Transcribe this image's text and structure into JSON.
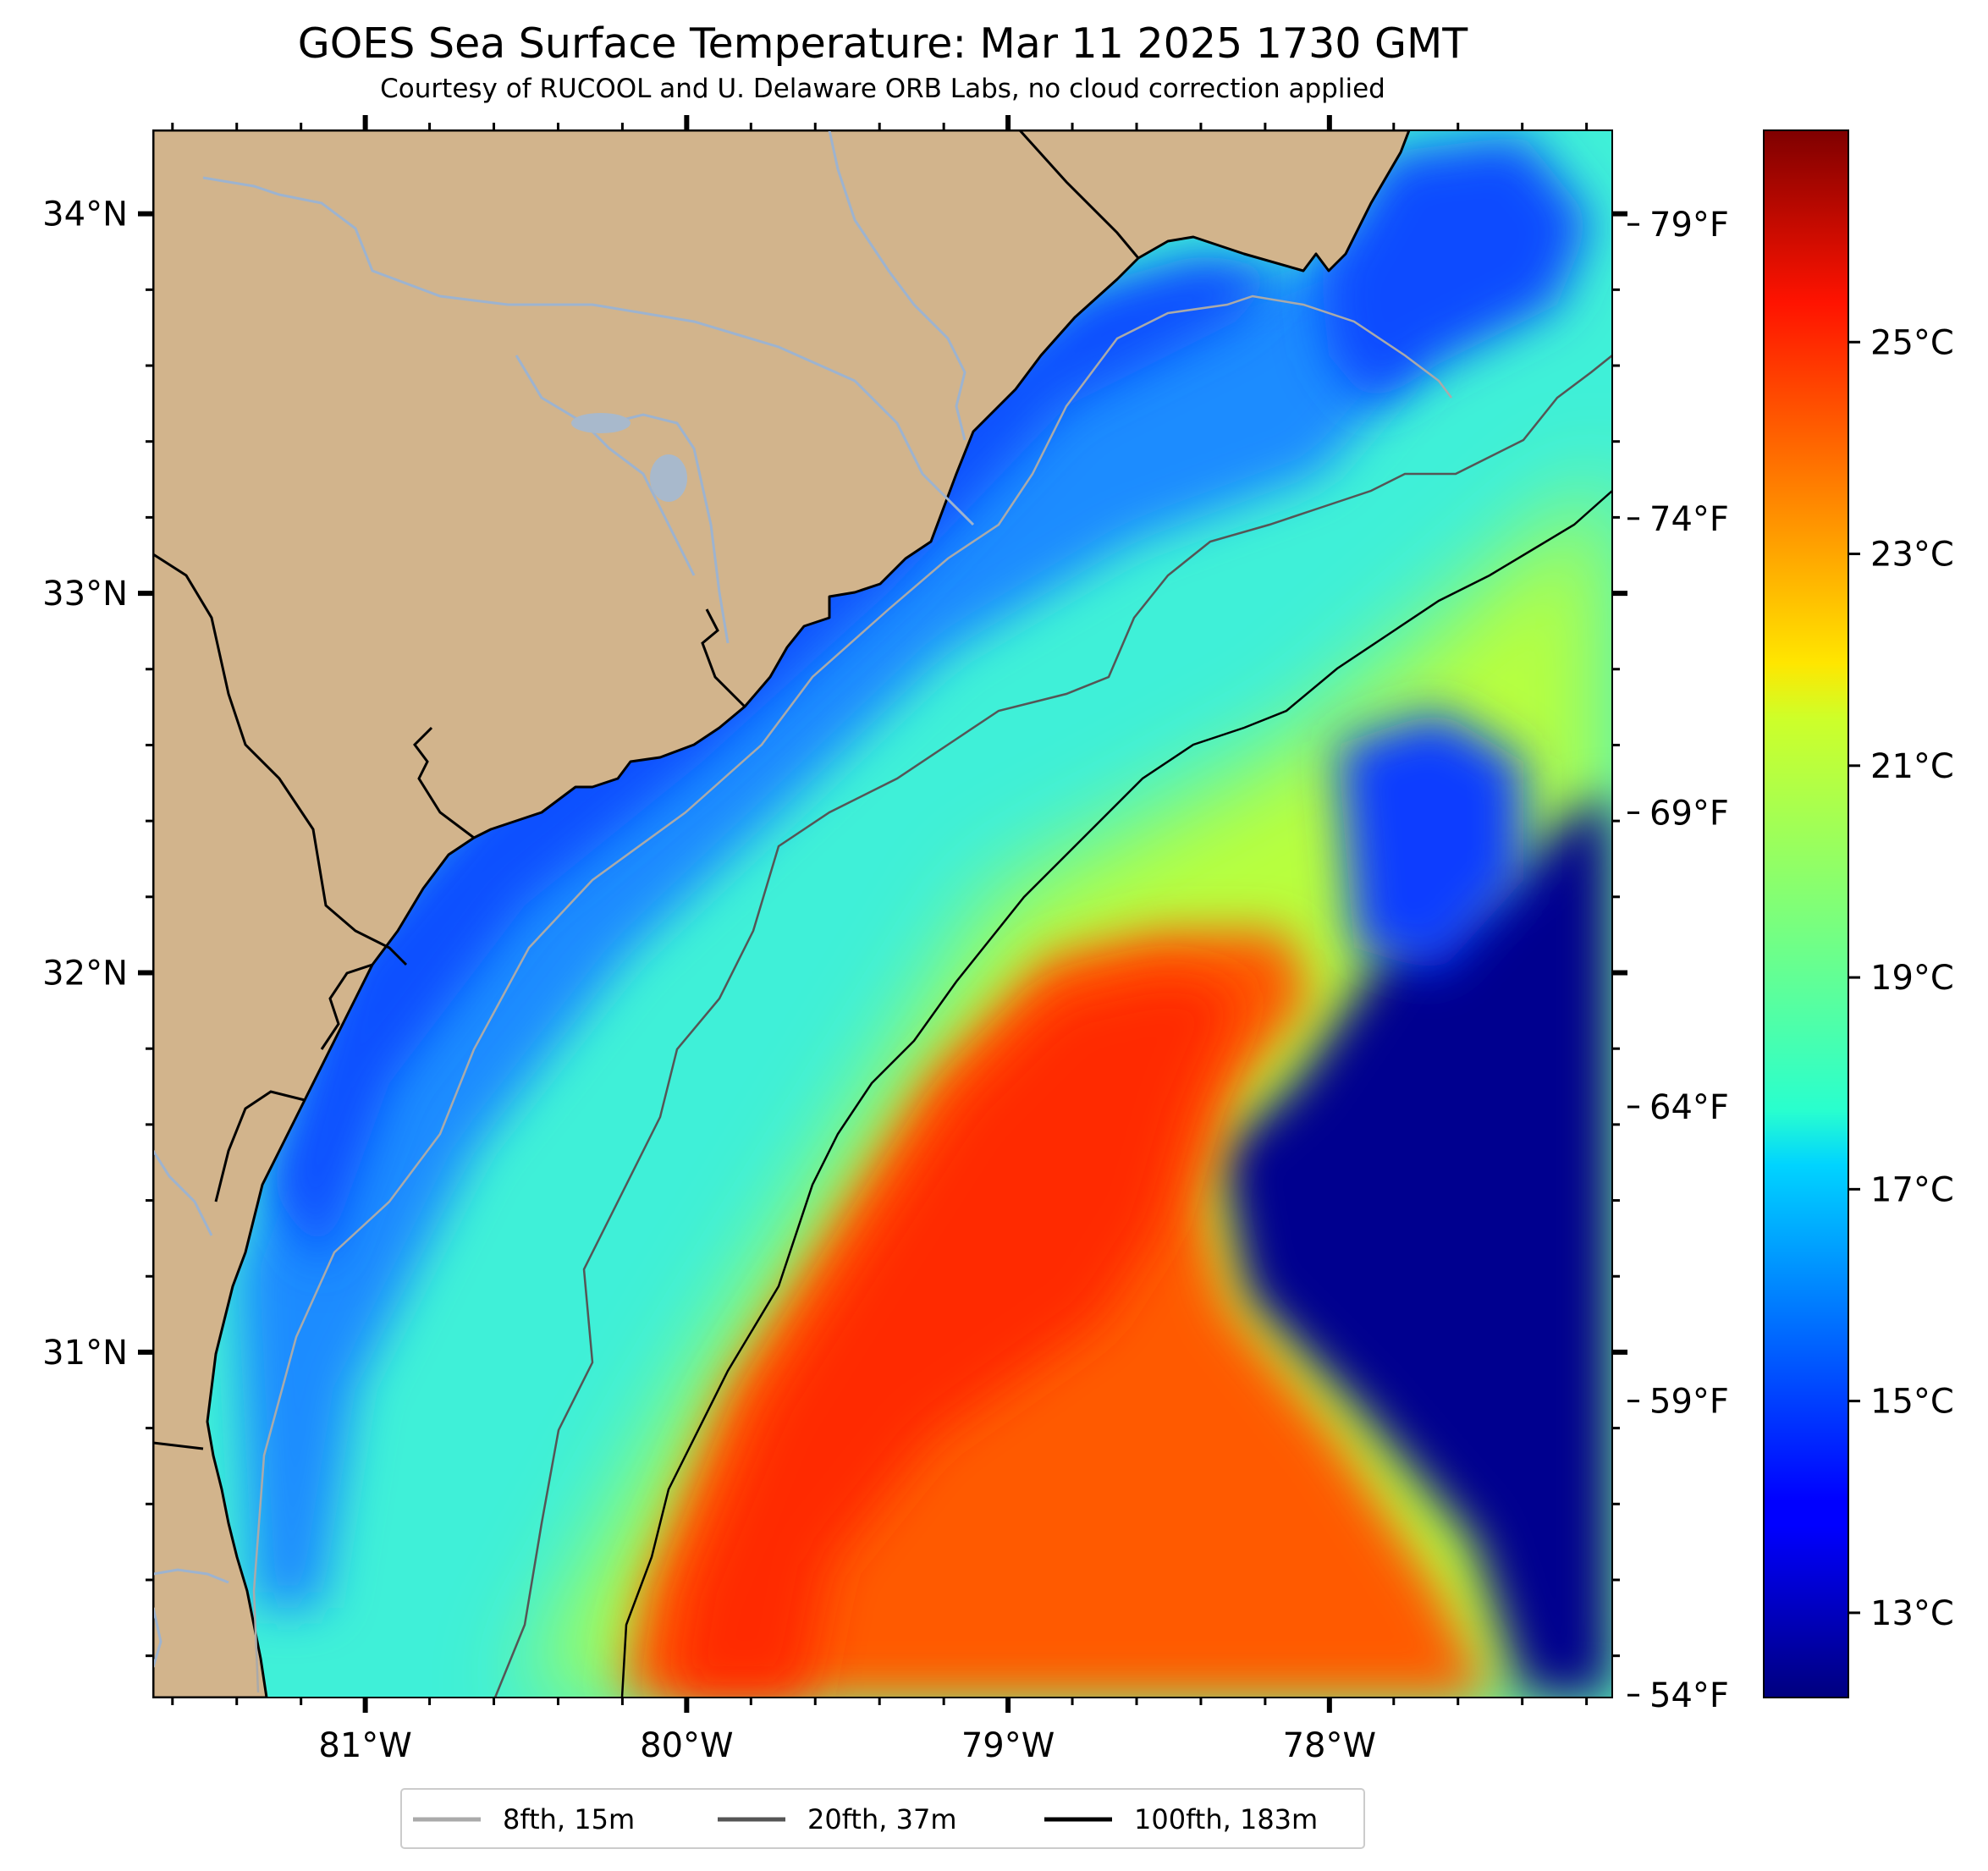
{
  "title": "GOES Sea Surface Temperature: Mar 11 2025 1730 GMT",
  "subtitle": "Courtesy of RUCOOL and U. Delaware ORB Labs, no cloud correction applied",
  "map": {
    "lon_range": [
      -81.66,
      -77.12
    ],
    "lat_range": [
      30.09,
      34.22
    ],
    "lat_ticks": [
      {
        "value": 34,
        "label": "34°N"
      },
      {
        "value": 33,
        "label": "33°N"
      },
      {
        "value": 32,
        "label": "32°N"
      },
      {
        "value": 31,
        "label": "31°N"
      }
    ],
    "lon_ticks": [
      {
        "value": -81,
        "label": "81°W"
      },
      {
        "value": -80,
        "label": "80°W"
      },
      {
        "value": -79,
        "label": "79°W"
      },
      {
        "value": -78,
        "label": "78°W"
      }
    ],
    "colors": {
      "land": "#d2b48c",
      "river": "#9db3cf",
      "coastline": "#000000",
      "no_data": "#ffffff"
    }
  },
  "colorbar": {
    "colormap": "jet",
    "celsius_range": [
      12.2,
      27.0
    ],
    "celsius_ticks": [
      {
        "value": 13,
        "label": "13°C"
      },
      {
        "value": 15,
        "label": "15°C"
      },
      {
        "value": 17,
        "label": "17°C"
      },
      {
        "value": 19,
        "label": "19°C"
      },
      {
        "value": 21,
        "label": "21°C"
      },
      {
        "value": 23,
        "label": "23°C"
      },
      {
        "value": 25,
        "label": "25°C"
      }
    ],
    "fahrenheit_ticks": [
      {
        "value": 54,
        "label": "54°F"
      },
      {
        "value": 59,
        "label": "59°F"
      },
      {
        "value": 64,
        "label": "64°F"
      },
      {
        "value": 69,
        "label": "69°F"
      },
      {
        "value": 74,
        "label": "74°F"
      },
      {
        "value": 79,
        "label": "79°F"
      }
    ]
  },
  "legend": {
    "items": [
      {
        "label": "8fth, 15m",
        "color": "#aaaaaa"
      },
      {
        "label": "20fth, 37m",
        "color": "#555555"
      },
      {
        "label": "100fth, 183m",
        "color": "#000000"
      }
    ]
  }
}
